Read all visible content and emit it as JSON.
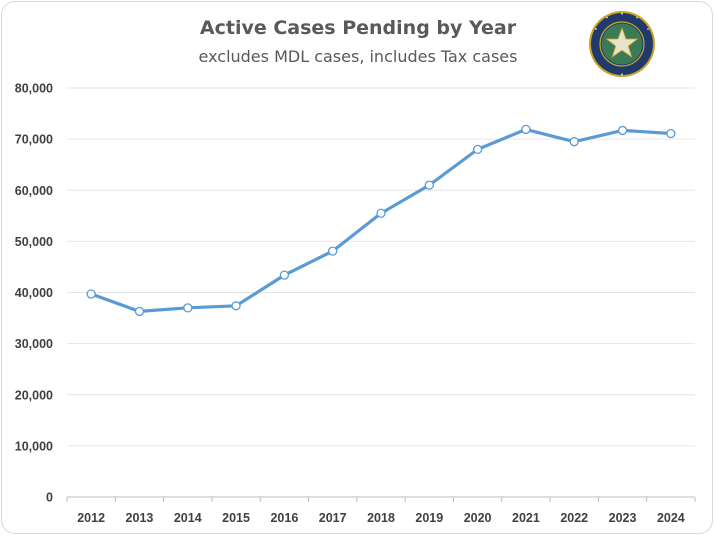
{
  "title": "Active Cases Pending by Year",
  "subtitle": "excludes MDL cases, includes Tax cases",
  "colors": {
    "line": "#5b9bd5",
    "grid": "#e6e6e6",
    "text": "#404040",
    "title": "#595959",
    "seal_navy": "#1f3a6b",
    "seal_gold": "#c9a227"
  },
  "seal": {
    "icon": "court-seal-icon",
    "text": "DISTRICT COURTS OF HARRIS COUNTY · STATE OF TEXAS"
  },
  "chart_data": {
    "type": "line",
    "title": "Active Cases Pending by Year",
    "subtitle": "excludes MDL cases, includes Tax cases",
    "xlabel": "",
    "ylabel": "",
    "categories": [
      "2012",
      "2013",
      "2014",
      "2015",
      "2016",
      "2017",
      "2018",
      "2019",
      "2020",
      "2021",
      "2022",
      "2023",
      "2024"
    ],
    "series": [
      {
        "values": [
          39700,
          36300,
          37000,
          37400,
          43400,
          48100,
          55500,
          61000,
          68000,
          71900,
          69500,
          71700,
          71100
        ]
      }
    ],
    "ylim": [
      0,
      80000
    ],
    "yticks": [
      "0",
      "10,000",
      "20,000",
      "30,000",
      "40,000",
      "50,000",
      "60,000",
      "70,000",
      "80,000"
    ],
    "grid": true,
    "legend": "none"
  }
}
